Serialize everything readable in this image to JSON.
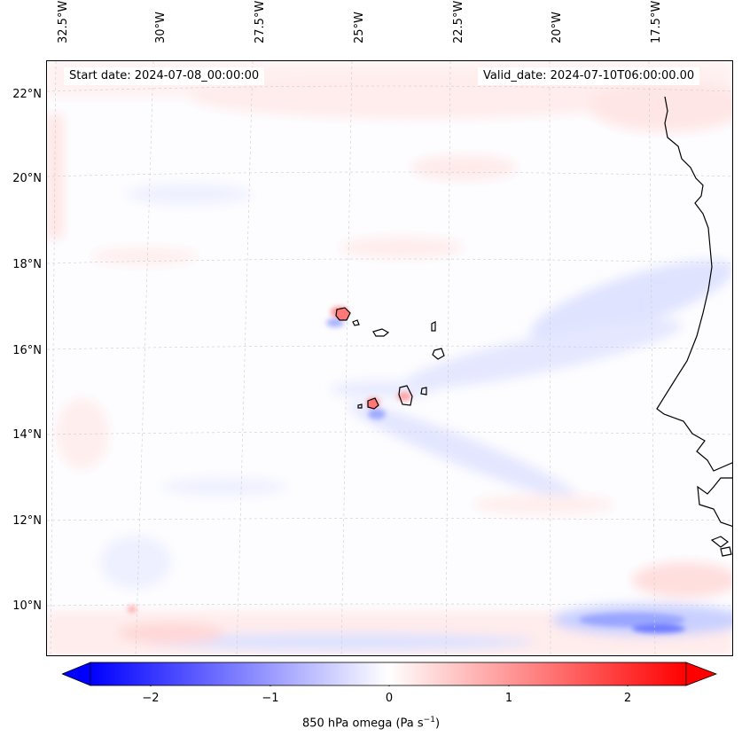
{
  "map": {
    "start_date": "Start date: 2024-07-08_00:00:00",
    "valid_date": "Valid_date: 2024-07-10T06:00:00.00",
    "lon_labels": [
      "32.5°W",
      "30°W",
      "27.5°W",
      "25°W",
      "22.5°W",
      "20°W",
      "17.5°W"
    ],
    "lat_labels": [
      "22°N",
      "20°N",
      "18°N",
      "16°N",
      "14°N",
      "12°N",
      "10°N"
    ],
    "coastline_color": "#000000",
    "gridline_color": "#cccccc",
    "field": "850 hPa omega",
    "field_units": "Pa s",
    "field_units_exponent": "−1"
  },
  "colorbar": {
    "ticks": [
      "−2",
      "−1",
      "0",
      "1",
      "2"
    ],
    "tick_values": [
      -2,
      -1,
      0,
      1,
      2
    ],
    "range": [
      -2.5,
      2.5
    ],
    "colormap": "bwr",
    "low_color": "#0000ff",
    "mid_color": "#ffffff",
    "high_color": "#ff0000",
    "label_text": "850 hPa omega (Pa s",
    "label_exponent": "−1",
    "label_suffix": ")"
  }
}
